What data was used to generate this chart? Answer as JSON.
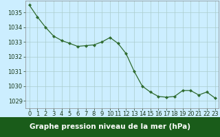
{
  "x": [
    0,
    1,
    2,
    3,
    4,
    5,
    6,
    7,
    8,
    9,
    10,
    11,
    12,
    13,
    14,
    15,
    16,
    17,
    18,
    19,
    20,
    21,
    22,
    23
  ],
  "y": [
    1035.5,
    1034.7,
    1034.0,
    1033.4,
    1033.1,
    1032.9,
    1032.7,
    1032.75,
    1032.8,
    1033.0,
    1033.3,
    1032.9,
    1032.2,
    1031.0,
    1030.0,
    1029.6,
    1029.3,
    1029.25,
    1029.3,
    1029.7,
    1029.7,
    1029.4,
    1029.6,
    1029.2
  ],
  "line_color": "#2d6a2d",
  "marker_color": "#2d6a2d",
  "bg_color": "#cceeff",
  "grid_color": "#aacccc",
  "xlabel": "Graphe pression niveau de la mer (hPa)",
  "xlabel_bg": "#1a5c1a",
  "xlabel_color": "#ffffff",
  "ylim_min": 1028.5,
  "ylim_max": 1035.8,
  "yticks": [
    1029,
    1030,
    1031,
    1032,
    1033,
    1034,
    1035
  ],
  "xticks": [
    0,
    1,
    2,
    3,
    4,
    5,
    6,
    7,
    8,
    9,
    10,
    11,
    12,
    13,
    14,
    15,
    16,
    17,
    18,
    19,
    20,
    21,
    22,
    23
  ],
  "tick_fontsize": 6.0,
  "label_fontsize": 7.5
}
